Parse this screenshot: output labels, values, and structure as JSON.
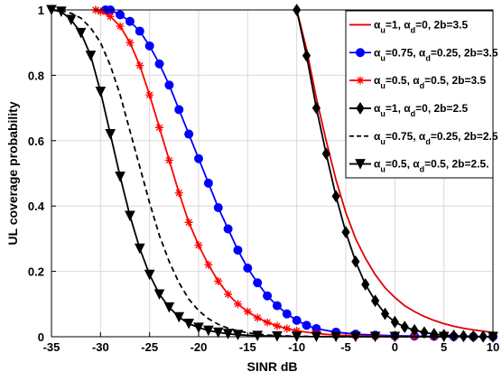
{
  "chart_data": {
    "type": "line",
    "title": "",
    "xlabel": "SINR dB",
    "ylabel": "UL coverage probability",
    "xlim": [
      -35,
      10
    ],
    "ylim": [
      0,
      1
    ],
    "xticks": [
      -35,
      -30,
      -25,
      -20,
      -15,
      -10,
      -5,
      0,
      5,
      10
    ],
    "yticks": [
      0,
      0.2,
      0.4,
      0.6,
      0.8,
      1
    ],
    "grid": true,
    "legend_position": "top-right",
    "series": [
      {
        "name": "α_u=1, α_d=0, 2b=3.5",
        "legend_parts": [
          [
            "α",
            ""
          ],
          [
            "u",
            "sub"
          ],
          [
            "=1, ",
            ""
          ],
          [
            "α",
            ""
          ],
          [
            "d",
            "sub"
          ],
          [
            "=0, 2b=3.5",
            ""
          ]
        ],
        "color": "#e00000",
        "dash": "solid",
        "marker": "none",
        "x": [
          -10,
          -9,
          -8,
          -7,
          -6,
          -5,
          -4,
          -3,
          -2,
          -1,
          0,
          1,
          2,
          3,
          4,
          5,
          6,
          7,
          8,
          9,
          10
        ],
        "y": [
          1.0,
          0.88,
          0.73,
          0.6,
          0.48,
          0.38,
          0.3,
          0.24,
          0.19,
          0.15,
          0.12,
          0.095,
          0.077,
          0.062,
          0.05,
          0.04,
          0.032,
          0.026,
          0.021,
          0.017,
          0.013
        ]
      },
      {
        "name": "α_u=0.75, α_d=0.25, 2b=3.5",
        "legend_parts": [
          [
            "α",
            ""
          ],
          [
            "u",
            "sub"
          ],
          [
            "=0.75, ",
            ""
          ],
          [
            "α",
            ""
          ],
          [
            "d",
            "sub"
          ],
          [
            "=0.25, 2b=3.5",
            ""
          ]
        ],
        "color": "#0000ff",
        "dash": "solid",
        "marker": "circle",
        "x": [
          -29.5,
          -29,
          -28,
          -27,
          -26,
          -25,
          -24,
          -23,
          -22,
          -21,
          -20,
          -19,
          -18,
          -17,
          -16,
          -15,
          -14,
          -13,
          -12,
          -11,
          -10,
          -9,
          -8,
          -6,
          -4,
          -2,
          0,
          2,
          4,
          6,
          8,
          10
        ],
        "y": [
          1.0,
          1.0,
          0.985,
          0.965,
          0.935,
          0.89,
          0.835,
          0.77,
          0.695,
          0.62,
          0.545,
          0.47,
          0.395,
          0.33,
          0.265,
          0.21,
          0.165,
          0.125,
          0.095,
          0.07,
          0.05,
          0.035,
          0.025,
          0.014,
          0.008,
          0.005,
          0.003,
          0.002,
          0.001,
          0.0006,
          0.0004,
          0.0002
        ]
      },
      {
        "name": "α_u=0.5, α_d=0.5, 2b=3.5",
        "legend_parts": [
          [
            "α",
            ""
          ],
          [
            "u",
            "sub"
          ],
          [
            "=0.5, ",
            ""
          ],
          [
            "α",
            ""
          ],
          [
            "d",
            "sub"
          ],
          [
            "=0.5, 2b=3.5",
            ""
          ]
        ],
        "color": "#ff0000",
        "dash": "solid",
        "marker": "asterisk",
        "x": [
          -30.5,
          -30,
          -29,
          -28,
          -27,
          -26,
          -25,
          -24,
          -23,
          -22,
          -21,
          -20,
          -19,
          -18,
          -17,
          -16,
          -15,
          -14,
          -13,
          -12,
          -11,
          -10,
          -8,
          -6,
          -4,
          -2,
          0,
          2,
          4,
          6,
          8,
          10
        ],
        "y": [
          1.0,
          0.995,
          0.98,
          0.95,
          0.9,
          0.83,
          0.74,
          0.64,
          0.54,
          0.44,
          0.35,
          0.28,
          0.22,
          0.17,
          0.13,
          0.1,
          0.077,
          0.058,
          0.044,
          0.033,
          0.025,
          0.018,
          0.01,
          0.005,
          0.003,
          0.0015,
          0.0008,
          0.0004,
          0.0002,
          0.0001,
          0.0001,
          0.0
        ]
      },
      {
        "name": "α_u=1, α_d=0, 2b=2.5",
        "legend_parts": [
          [
            "α",
            ""
          ],
          [
            "u",
            "sub"
          ],
          [
            "=1, ",
            ""
          ],
          [
            "α",
            ""
          ],
          [
            "d",
            "sub"
          ],
          [
            "=0, 2b=2.5",
            ""
          ]
        ],
        "color": "#000000",
        "dash": "solid",
        "marker": "diamond",
        "x": [
          -10,
          -9,
          -8,
          -7,
          -6,
          -5,
          -4,
          -3,
          -2,
          -1,
          0,
          1,
          2,
          3,
          4,
          5,
          6,
          7,
          8,
          9,
          10
        ],
        "y": [
          1.0,
          0.86,
          0.7,
          0.56,
          0.43,
          0.32,
          0.23,
          0.16,
          0.11,
          0.07,
          0.045,
          0.03,
          0.02,
          0.013,
          0.008,
          0.005,
          0.003,
          0.002,
          0.001,
          0.0006,
          0.0003
        ]
      },
      {
        "name": "α_u=0.75, α_d=0.25, 2b=2.5",
        "legend_parts": [
          [
            "α",
            ""
          ],
          [
            "u",
            "sub"
          ],
          [
            "=0.75, ",
            ""
          ],
          [
            "α",
            ""
          ],
          [
            "d",
            "sub"
          ],
          [
            "=0.25, 2b=2.5",
            ""
          ]
        ],
        "color": "#000000",
        "dash": "dashed",
        "marker": "none",
        "x": [
          -35,
          -34,
          -33,
          -32,
          -31,
          -30,
          -29,
          -28,
          -27,
          -26,
          -25,
          -24,
          -23,
          -22,
          -21,
          -20,
          -19,
          -18,
          -17,
          -16,
          -15,
          -14,
          -13,
          -12,
          -10,
          -8,
          -6,
          -4,
          -2,
          0,
          5,
          10
        ],
        "y": [
          1.0,
          0.998,
          0.99,
          0.975,
          0.945,
          0.9,
          0.83,
          0.74,
          0.63,
          0.52,
          0.41,
          0.31,
          0.23,
          0.165,
          0.115,
          0.08,
          0.055,
          0.038,
          0.026,
          0.018,
          0.012,
          0.008,
          0.005,
          0.0035,
          0.0015,
          0.0007,
          0.0003,
          0.0001,
          0.0001,
          0.0,
          0.0,
          0.0
        ]
      },
      {
        "name": "α_u=0.5, α_d=0.5, 2b=2.5.",
        "legend_parts": [
          [
            "α",
            ""
          ],
          [
            "u",
            "sub"
          ],
          [
            "=0.5, ",
            ""
          ],
          [
            "α",
            ""
          ],
          [
            "d",
            "sub"
          ],
          [
            "=0.5, 2b=2.5.",
            ""
          ]
        ],
        "color": "#000000",
        "dash": "solid",
        "marker": "triangle-down",
        "x": [
          -35,
          -34,
          -33,
          -32,
          -31,
          -30,
          -29,
          -28,
          -27,
          -26,
          -25,
          -24,
          -23,
          -22,
          -21,
          -20,
          -19,
          -18,
          -17,
          -16,
          -14,
          -12,
          -10,
          -8,
          -6,
          -4,
          -2,
          0,
          5,
          10
        ],
        "y": [
          1.0,
          0.995,
          0.97,
          0.93,
          0.86,
          0.75,
          0.62,
          0.49,
          0.37,
          0.27,
          0.19,
          0.13,
          0.09,
          0.06,
          0.04,
          0.028,
          0.019,
          0.013,
          0.009,
          0.006,
          0.003,
          0.0015,
          0.0007,
          0.0003,
          0.0001,
          0.0001,
          0.0,
          0.0,
          0.0,
          0.0
        ]
      }
    ]
  }
}
